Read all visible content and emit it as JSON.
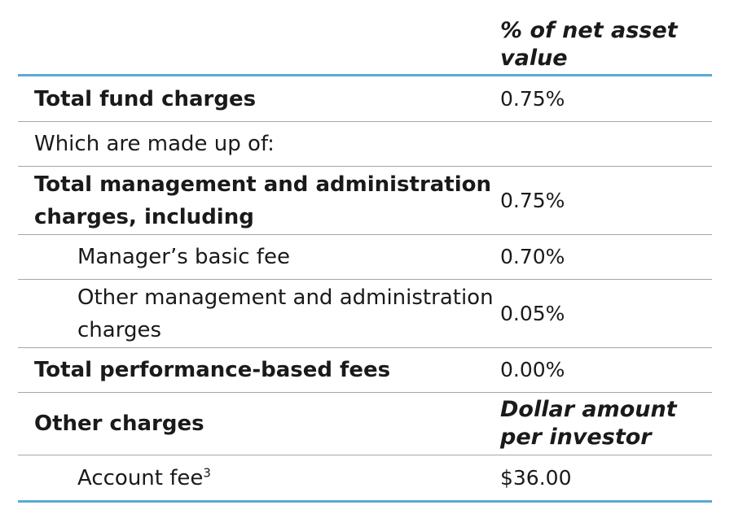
{
  "header": {
    "column_label": "",
    "column_value": "% of net asset value"
  },
  "rows": [
    {
      "label": "Total fund charges",
      "value": "0.75%"
    },
    {
      "label": "Which are made up of:",
      "value": ""
    },
    {
      "label": "Total management and administration charges, including",
      "value": "0.75%"
    },
    {
      "label": "Manager’s basic fee",
      "value": "0.70%"
    },
    {
      "label": "Other management and administration charges",
      "value": "0.05%"
    },
    {
      "label": "Total performance-based fees",
      "value": "0.00%"
    },
    {
      "label": "Other charges",
      "value": "Dollar amount per investor"
    },
    {
      "label": "Account fee",
      "footnote": "3",
      "value": "$36.00"
    }
  ]
}
